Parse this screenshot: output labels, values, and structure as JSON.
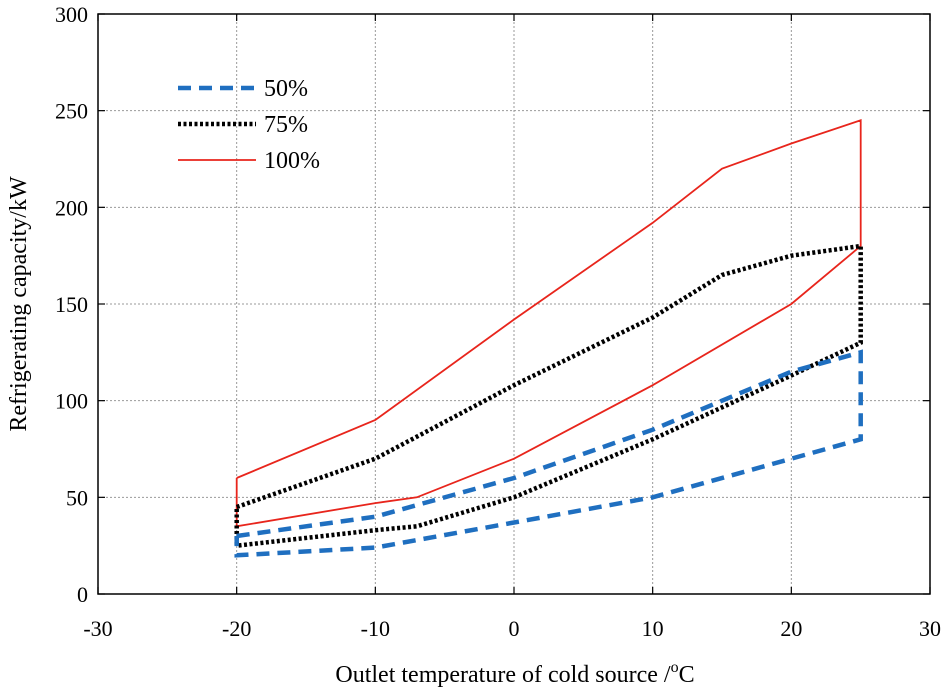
{
  "chart_data": {
    "type": "line",
    "title": "",
    "xlabel": "Outlet temperature of cold source /",
    "xlabel_unit_sup": "o",
    "xlabel_unit": "C",
    "ylabel": "Refrigerating capacity/kW",
    "xlim": [
      -30,
      30
    ],
    "ylim": [
      0,
      300
    ],
    "xticks": [
      -30,
      -20,
      -10,
      0,
      10,
      20,
      30
    ],
    "yticks": [
      0,
      50,
      100,
      150,
      200,
      250,
      300
    ],
    "grid": true,
    "legend_position": "top-left",
    "series": [
      {
        "name": "50%",
        "color": "#1f6fc0",
        "style": "dashed",
        "points": [
          [
            -20,
            30
          ],
          [
            -10,
            40
          ],
          [
            0,
            60
          ],
          [
            10,
            85
          ],
          [
            20,
            115
          ],
          [
            25,
            125
          ],
          [
            25,
            80
          ],
          [
            20,
            70
          ],
          [
            10,
            50
          ],
          [
            0,
            37
          ],
          [
            -10,
            24
          ],
          [
            -20,
            20
          ],
          [
            -20,
            30
          ]
        ]
      },
      {
        "name": "75%",
        "color": "#000000",
        "style": "dotted",
        "points": [
          [
            -20,
            45
          ],
          [
            -10,
            70
          ],
          [
            0,
            108
          ],
          [
            10,
            143
          ],
          [
            15,
            165
          ],
          [
            20,
            175
          ],
          [
            25,
            180
          ],
          [
            25,
            130
          ],
          [
            20,
            113
          ],
          [
            10,
            80
          ],
          [
            0,
            50
          ],
          [
            -7,
            35
          ],
          [
            -10,
            33
          ],
          [
            -20,
            25
          ],
          [
            -20,
            45
          ]
        ]
      },
      {
        "name": "100%",
        "color": "#e8251c",
        "style": "solid",
        "points": [
          [
            -20,
            60
          ],
          [
            -10,
            90
          ],
          [
            0,
            142
          ],
          [
            10,
            192
          ],
          [
            15,
            220
          ],
          [
            20,
            233
          ],
          [
            25,
            245
          ],
          [
            25,
            180
          ],
          [
            20,
            150
          ],
          [
            10,
            108
          ],
          [
            0,
            70
          ],
          [
            -7,
            50
          ],
          [
            -10,
            47
          ],
          [
            -20,
            35
          ],
          [
            -20,
            60
          ]
        ]
      }
    ]
  }
}
